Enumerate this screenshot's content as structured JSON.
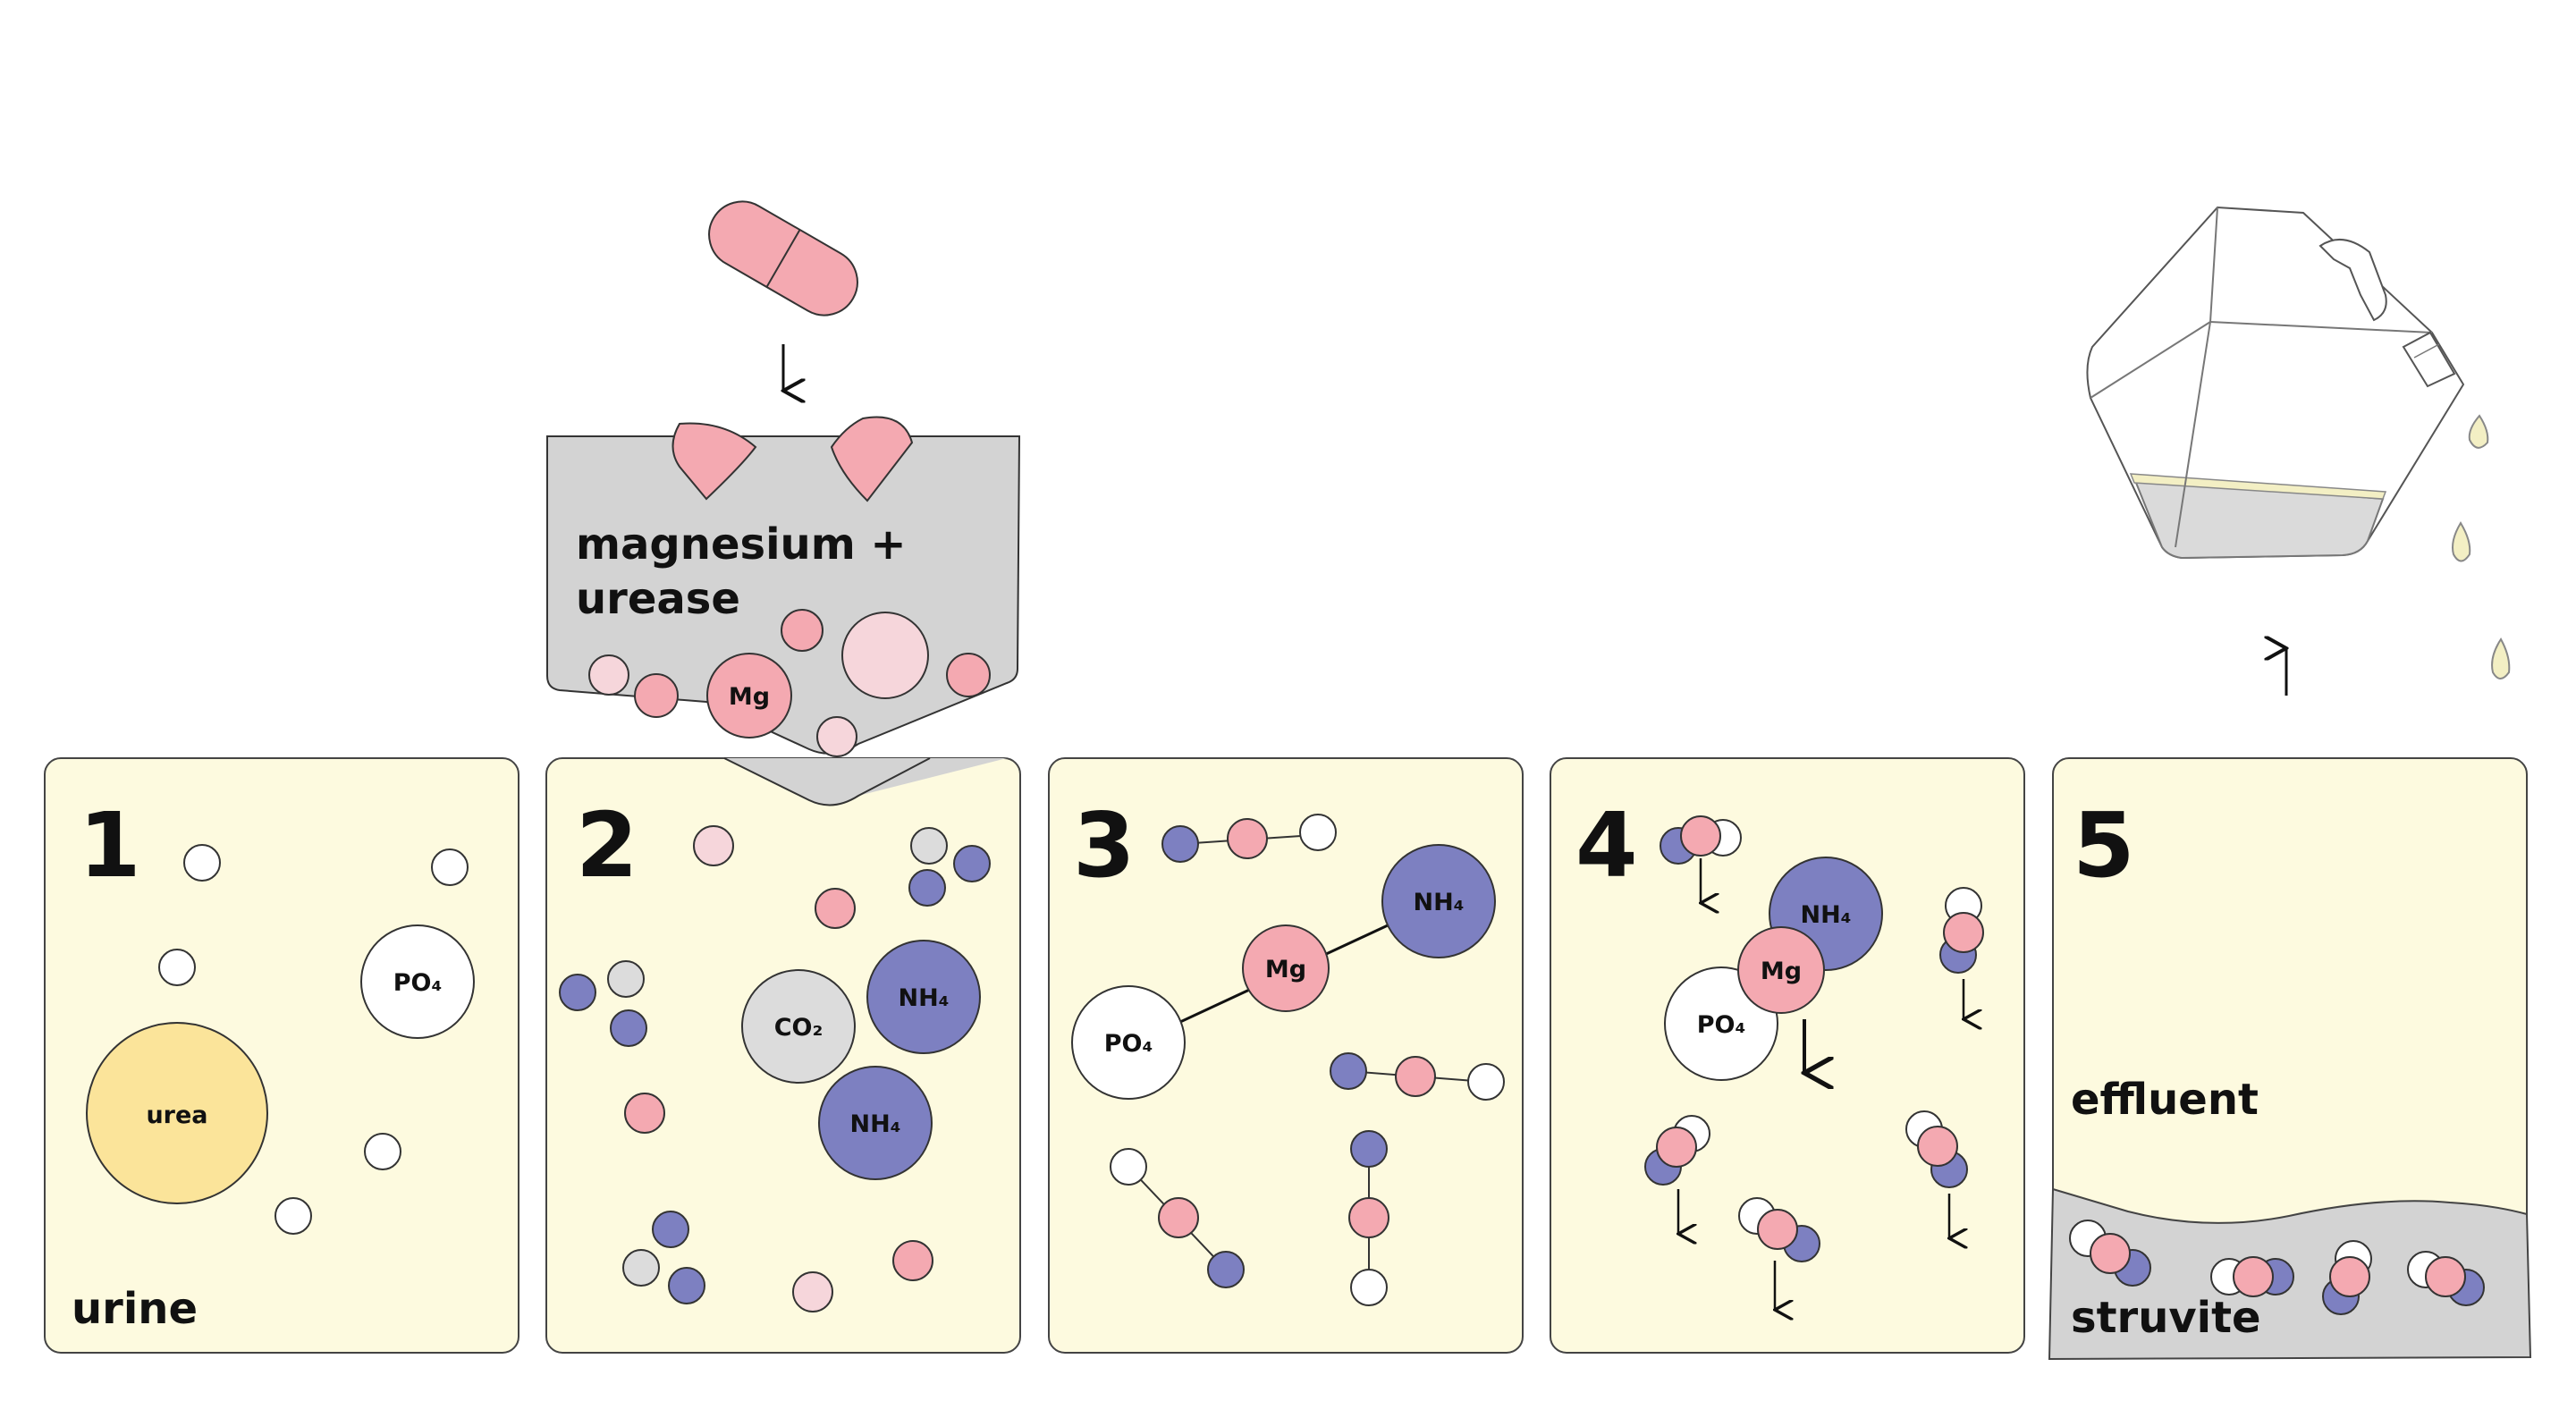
{
  "colors": {
    "panel_fill": "#fdfadf",
    "water_fill": "#d3d3d3",
    "urea_fill": "#fbe49a",
    "magnesium_pink": "#f4a9b1",
    "light_pink": "#f6d6db",
    "ammonium_blue": "#7d80c1",
    "co2_gray": "#dcdcdc",
    "phosphate_white": "#ffffff"
  },
  "icons": [
    "capsule-icon",
    "down-arrow-icon",
    "up-arrow-icon",
    "canister-icon",
    "droplet-icon"
  ],
  "additive": {
    "label_line1": "magnesium +",
    "label_line2": "urease",
    "mg": "Mg"
  },
  "panels": [
    {
      "number": "1",
      "word": "urine",
      "urea": "urea",
      "po4": "PO₄"
    },
    {
      "number": "2",
      "co2": "CO₂",
      "nh4_a": "NH₄",
      "nh4_b": "NH₄"
    },
    {
      "number": "3",
      "po4": "PO₄",
      "mg": "Mg",
      "nh4": "NH₄"
    },
    {
      "number": "4",
      "nh4": "NH₄",
      "mg": "Mg",
      "po4": "PO₄"
    },
    {
      "number": "5",
      "effluent": "effluent",
      "struvite": "struvite"
    }
  ]
}
